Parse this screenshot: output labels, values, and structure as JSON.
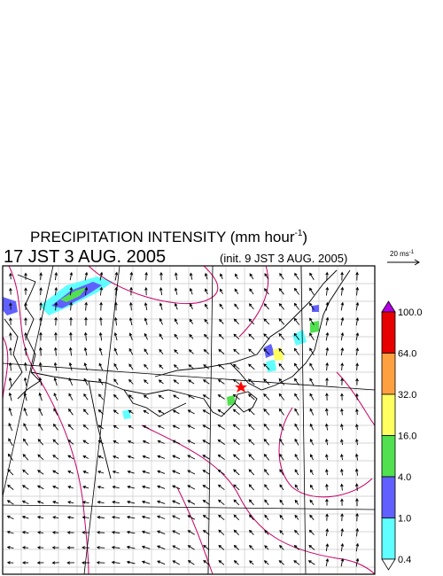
{
  "header": {
    "title": "PRECIPITATION INTENSITY (mm hour",
    "title_exponent": "-1",
    "title_end": ")",
    "valid_time": "17 JST 3 AUG. 2005",
    "init_time": "(init. 9 JST 3 AUG. 2005)"
  },
  "wind_scale": {
    "label": "20 ms",
    "exponent": "-1"
  },
  "colorbar": {
    "over_color": "#b400e6",
    "under_color": "#ffffff",
    "levels": [
      {
        "label": "100.0",
        "color": "#e60000"
      },
      {
        "label": "64.0",
        "color": "#ffa040"
      },
      {
        "label": "32.0",
        "color": "#ffff60"
      },
      {
        "label": "16.0",
        "color": "#50e050"
      },
      {
        "label": "4.0",
        "color": "#6060ff"
      },
      {
        "label": "1.0",
        "color": "#60ffff"
      },
      {
        "label": "0.4",
        "color": null
      }
    ]
  }
}
